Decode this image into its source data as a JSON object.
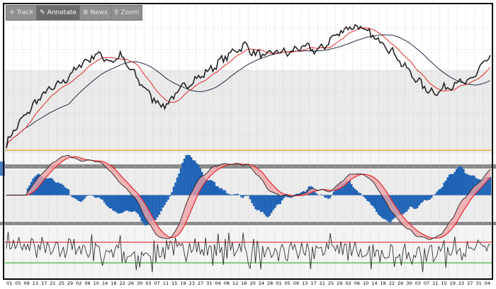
{
  "toolbar": {
    "items": [
      {
        "label": "Track",
        "icon": "crosshair-icon",
        "glyph": "✛"
      },
      {
        "label": "Annotate",
        "icon": "pencil-icon",
        "glyph": "✎"
      },
      {
        "label": "News",
        "icon": "news-icon",
        "glyph": "≣"
      },
      {
        "label": "Zoom",
        "icon": "magnifier-icon",
        "glyph": "⚲"
      }
    ]
  },
  "colors": {
    "price": "#222222",
    "fast_ma": "#e8262b",
    "slow_ma": "#1f2a44",
    "macd_line": "#222222",
    "signal_line": "#e8262b",
    "histogram": "#1f63b6",
    "divergence_fill": "#f2a3a6",
    "rsi_line": "#333333",
    "upper_band": "#e8262b",
    "lower_band": "#2bb02b",
    "reference_line": "#f0a030",
    "panel_separator": "#8a8a8a",
    "grid": "#c8c8c8"
  },
  "chart_data": [
    {
      "type": "line",
      "panel": "price",
      "title": "",
      "xlabel": "",
      "ylabel": "",
      "grid": true,
      "x_tick_labels": [
        "01",
        "05",
        "09",
        "13",
        "17",
        "21",
        "25",
        "29",
        "02",
        "06",
        "10",
        "14",
        "18",
        "22",
        "26",
        "30",
        "03",
        "07",
        "11",
        "15",
        "19",
        "23",
        "27",
        "31",
        "04",
        "08",
        "12",
        "16",
        "20",
        "24",
        "28",
        "01",
        "05",
        "09",
        "13",
        "17",
        "21",
        "25",
        "29",
        "02",
        "06",
        "10",
        "14",
        "18",
        "22",
        "26",
        "30",
        "03",
        "07",
        "11",
        "15",
        "19",
        "23",
        "27",
        "31",
        "04"
      ],
      "ylim": [
        0,
        100
      ],
      "price_keypoints": [
        [
          0,
          6
        ],
        [
          4,
          16
        ],
        [
          10,
          26
        ],
        [
          16,
          36
        ],
        [
          22,
          44
        ],
        [
          28,
          48
        ],
        [
          34,
          54
        ],
        [
          40,
          62
        ],
        [
          46,
          68
        ],
        [
          52,
          72
        ],
        [
          58,
          66
        ],
        [
          64,
          70
        ],
        [
          70,
          60
        ],
        [
          76,
          50
        ],
        [
          82,
          40
        ],
        [
          88,
          34
        ],
        [
          92,
          38
        ],
        [
          98,
          46
        ],
        [
          104,
          52
        ],
        [
          110,
          56
        ],
        [
          116,
          62
        ],
        [
          122,
          68
        ],
        [
          128,
          74
        ],
        [
          134,
          78
        ],
        [
          140,
          72
        ],
        [
          146,
          70
        ],
        [
          152,
          74
        ],
        [
          158,
          72
        ],
        [
          164,
          76
        ],
        [
          170,
          76
        ],
        [
          176,
          74
        ],
        [
          182,
          82
        ],
        [
          188,
          88
        ],
        [
          194,
          92
        ],
        [
          200,
          90
        ],
        [
          206,
          84
        ],
        [
          212,
          80
        ],
        [
          218,
          72
        ],
        [
          224,
          62
        ],
        [
          230,
          54
        ],
        [
          236,
          46
        ],
        [
          242,
          44
        ],
        [
          248,
          48
        ],
        [
          254,
          52
        ],
        [
          260,
          50
        ],
        [
          266,
          62
        ],
        [
          272,
          70
        ]
      ],
      "n_points": 273,
      "series": [
        {
          "kind": "price"
        },
        {
          "kind": "fast_ma",
          "period": 12
        },
        {
          "kind": "slow_ma",
          "period": 36
        }
      ],
      "reference_line_value": 2
    },
    {
      "type": "line",
      "panel": "macd",
      "title": "",
      "ylim": [
        -1,
        1
      ],
      "series": [
        {
          "kind": "macd_line"
        },
        {
          "kind": "signal_line"
        },
        {
          "kind": "histogram"
        }
      ],
      "zero_line": 0
    },
    {
      "type": "line",
      "panel": "oscillator",
      "title": "",
      "ylim": [
        0,
        100
      ],
      "series": [
        {
          "kind": "oscillator"
        }
      ],
      "upper_band": 70,
      "lower_band": 30
    }
  ]
}
